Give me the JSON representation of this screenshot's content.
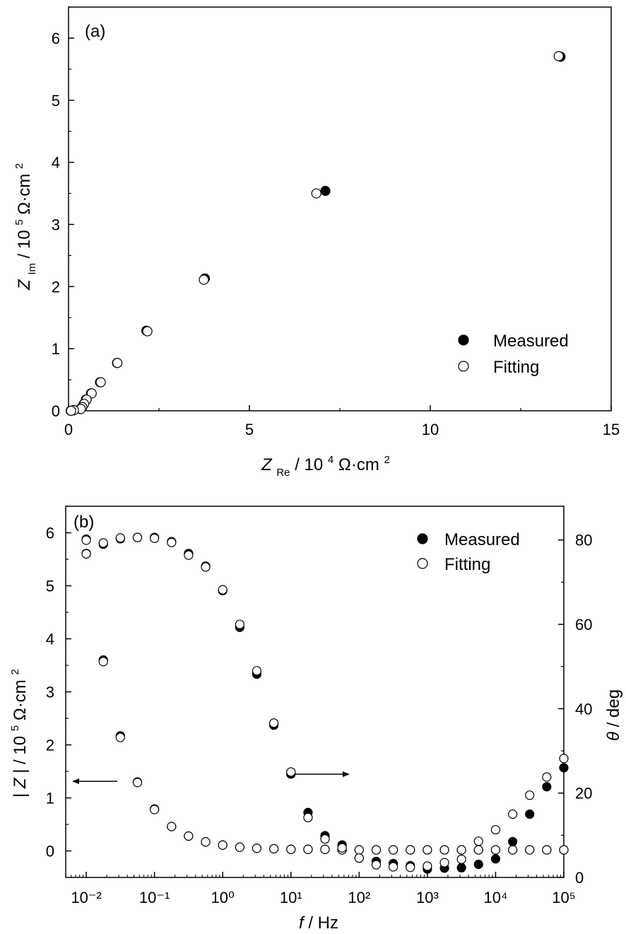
{
  "chart_data": [
    {
      "type": "scatter",
      "panel_label": "(a)",
      "xlabel": {
        "main": "Z",
        "sub": "Re",
        "unit": " / 10",
        "exp": "4",
        "tail": " Ω·cm",
        "tail_exp": "2"
      },
      "ylabel": {
        "main": "Z",
        "sub": "Im",
        "unit": " / 10",
        "exp": "5",
        "tail": " Ω·cm",
        "tail_exp": "2"
      },
      "xlim": [
        0,
        15
      ],
      "ylim": [
        0,
        6.5
      ],
      "x_ticks": [
        0,
        5,
        10,
        15
      ],
      "x_tick_labels": [
        "0",
        "5",
        "10",
        "15"
      ],
      "y_ticks": [
        0,
        1,
        2,
        3,
        4,
        5,
        6
      ],
      "y_tick_labels": [
        "0",
        "1",
        "2",
        "3",
        "4",
        "5",
        "6"
      ],
      "legend": {
        "position": "bottom-right",
        "entries": [
          "Measured",
          "Fitting"
        ]
      },
      "series": [
        {
          "name": "Measured",
          "marker": "filled-circle",
          "points": [
            [
              13.6,
              5.7
            ],
            [
              7.1,
              3.54
            ],
            [
              3.77,
              2.13
            ],
            [
              2.15,
              1.29
            ],
            [
              1.34,
              0.77
            ],
            [
              0.87,
              0.46
            ],
            [
              0.62,
              0.28
            ],
            [
              0.48,
              0.18
            ],
            [
              0.42,
              0.11
            ],
            [
              0.37,
              0.06
            ],
            [
              0.33,
              0.03
            ],
            [
              0.14,
              0.01
            ],
            [
              0.06,
              0.0
            ]
          ]
        },
        {
          "name": "Fitting",
          "marker": "open-circle",
          "points": [
            [
              13.55,
              5.71
            ],
            [
              6.85,
              3.5
            ],
            [
              3.74,
              2.11
            ],
            [
              2.18,
              1.28
            ],
            [
              1.35,
              0.77
            ],
            [
              0.89,
              0.46
            ],
            [
              0.64,
              0.28
            ],
            [
              0.5,
              0.18
            ],
            [
              0.43,
              0.11
            ],
            [
              0.38,
              0.06
            ],
            [
              0.34,
              0.03
            ],
            [
              0.15,
              0.01
            ],
            [
              0.07,
              0.0
            ]
          ]
        }
      ]
    },
    {
      "type": "scatter",
      "panel_label": "(b)",
      "xlabel": {
        "italic": "f",
        "rest": " / Hz"
      },
      "ylabel_left": {
        "pre": "|",
        "italic": "Z",
        "rest": "| / 10",
        "exp": "5",
        "tail": " Ω·cm",
        "tail_exp": "2"
      },
      "ylabel_right": {
        "italic": "θ",
        "rest": " / deg"
      },
      "x_scale": "log",
      "xlim": [
        0.005,
        100000
      ],
      "x_ticks": [
        0.01,
        0.1,
        1,
        10,
        100,
        1000,
        10000,
        100000
      ],
      "x_tick_labels": [
        "10⁻²",
        "10⁻¹",
        "10⁰",
        "10¹",
        "10²",
        "10³",
        "10⁴",
        "10⁵"
      ],
      "ylim_left": [
        -0.5,
        6.5
      ],
      "y_ticks_left": [
        0,
        1,
        2,
        3,
        4,
        5,
        6
      ],
      "y_tick_labels_left": [
        "0",
        "1",
        "2",
        "3",
        "4",
        "5",
        "6"
      ],
      "ylim_right": [
        0,
        88
      ],
      "y_ticks_right": [
        0,
        20,
        40,
        60,
        80
      ],
      "y_tick_labels_right": [
        "0",
        "20",
        "40",
        "60",
        "80"
      ],
      "legend": {
        "position": "top-right",
        "entries": [
          "Measured",
          "Fitting"
        ]
      },
      "f": [
        0.01,
        0.0178,
        0.0316,
        0.0562,
        0.1,
        0.178,
        0.316,
        0.562,
        1,
        1.78,
        3.16,
        5.62,
        10,
        17.8,
        31.6,
        56.2,
        100,
        178,
        316,
        562,
        1000,
        1780,
        3160,
        5620,
        10000,
        17800,
        31600,
        56200,
        100000
      ],
      "series": [
        {
          "name": "Measured",
          "axis": "left",
          "marker": "filled-circle",
          "values": [
            5.88,
            3.6,
            2.17,
            1.3,
            0.79,
            0.46,
            0.28,
            0.17,
            0.11,
            0.07,
            0.05,
            0.04,
            0.03,
            0.03,
            0.03,
            0.02,
            0.02,
            0.02,
            0.02,
            0.02,
            0.02,
            0.02,
            0.02,
            0.02,
            0.02,
            0.02,
            0.02,
            0.02,
            0.02
          ]
        },
        {
          "name": "Fitting",
          "axis": "left",
          "marker": "open-circle",
          "values": [
            5.86,
            3.57,
            2.14,
            1.29,
            0.78,
            0.46,
            0.28,
            0.17,
            0.11,
            0.07,
            0.05,
            0.04,
            0.03,
            0.03,
            0.03,
            0.02,
            0.02,
            0.02,
            0.02,
            0.02,
            0.02,
            0.02,
            0.02,
            0.02,
            0.02,
            0.02,
            0.02,
            0.02,
            0.02
          ]
        },
        {
          "name": "Measured",
          "axis": "right",
          "marker": "filled-circle",
          "values": [
            76.8,
            79.0,
            80.3,
            80.6,
            80.6,
            79.6,
            76.8,
            73.8,
            68.0,
            59.3,
            48.2,
            36.1,
            24.5,
            15.4,
            9.9,
            7.7,
            4.6,
            3.8,
            3.3,
            2.8,
            2.0,
            2.2,
            2.3,
            3.1,
            4.4,
            8.5,
            15.0,
            21.5,
            26.0
          ]
        },
        {
          "name": "Fitting",
          "axis": "right",
          "marker": "open-circle",
          "values": [
            76.7,
            79.3,
            80.5,
            80.6,
            80.4,
            79.4,
            76.4,
            73.6,
            68.2,
            60.0,
            49.0,
            36.6,
            25.0,
            14.2,
            9.1,
            7.0,
            4.6,
            3.0,
            2.5,
            2.4,
            2.7,
            3.5,
            4.3,
            8.6,
            11.3,
            15.0,
            19.5,
            23.8,
            28.2
          ]
        }
      ],
      "annotations": [
        {
          "type": "arrow",
          "direction": "left",
          "points_to": "left-axis"
        },
        {
          "type": "arrow",
          "direction": "right",
          "points_to": "right-axis"
        }
      ]
    }
  ]
}
